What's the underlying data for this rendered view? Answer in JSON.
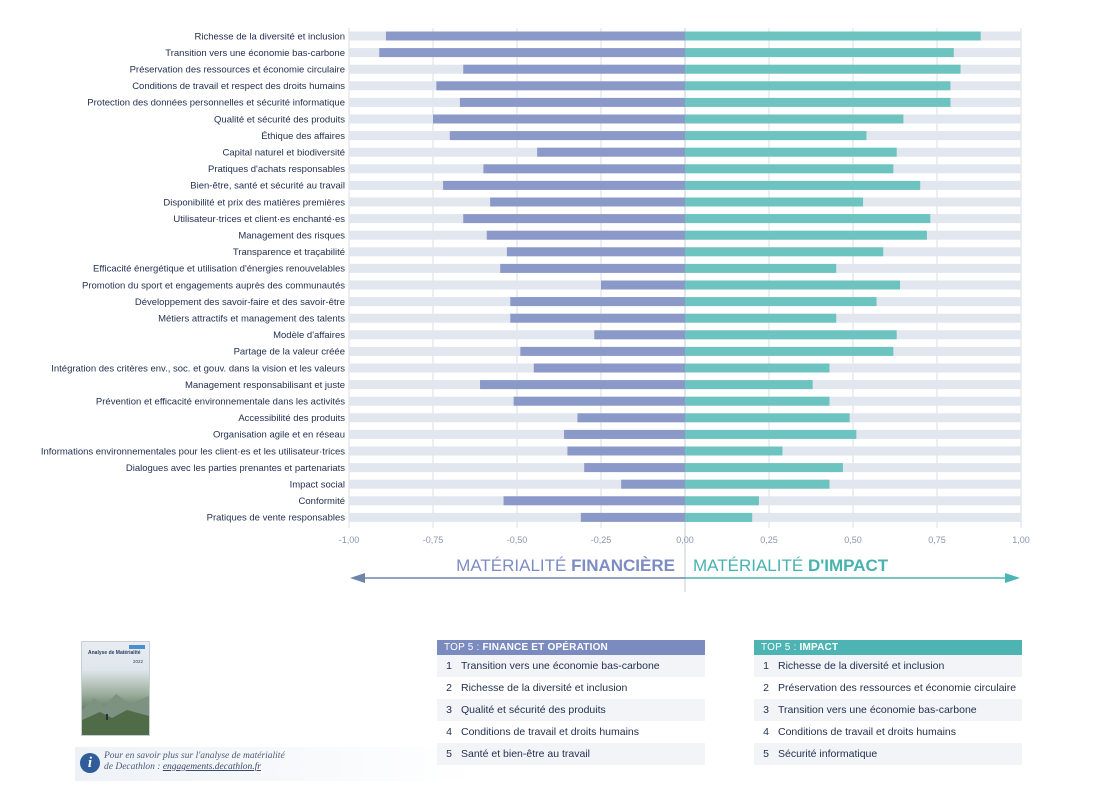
{
  "chart_data": {
    "type": "bar",
    "orientation": "horizontal",
    "categories": [
      "Richesse de la diversité et inclusion",
      "Transition vers une économie bas-carbone",
      "Préservation des ressources et économie circulaire",
      "Conditions de travail et respect des droits humains",
      "Protection des données personnelles et sécurité informatique",
      "Qualité et sécurité des produits",
      "Éthique des affaires",
      "Capital naturel et biodiversité",
      "Pratiques d'achats responsables",
      "Bien-être, santé et sécurité au travail",
      "Disponibilité et prix des matières premières",
      "Utilisateur·trices et client·es enchanté·es",
      "Management des risques",
      "Transparence et traçabilité",
      "Efficacité énergétique et utilisation d'énergies renouvelables",
      "Promotion du sport et engagements auprès des communautés",
      "Développement des savoir-faire et des savoir-être",
      "Métiers attractifs et management des talents",
      "Modèle d'affaires",
      "Partage de la valeur créée",
      "Intégration des critères env., soc. et gouv. dans la vision et les valeurs",
      "Management responsabilisant et juste",
      "Prévention et efficacité environnementale dans les activités",
      "Accessibilité des produits",
      "Organisation agile et en réseau",
      "Informations environnementales pour les client·es et les utilisateur·trices",
      "Dialogues avec les parties prenantes et partenariats",
      "Impact social",
      "Conformité",
      "Pratiques de vente responsables"
    ],
    "series": [
      {
        "name": "MATÉRIALITÉ FINANCIÈRE",
        "color": "#8b99c9",
        "values": [
          -0.89,
          -0.91,
          -0.66,
          -0.74,
          -0.67,
          -0.75,
          -0.7,
          -0.44,
          -0.6,
          -0.72,
          -0.58,
          -0.66,
          -0.59,
          -0.53,
          -0.55,
          -0.25,
          -0.52,
          -0.52,
          -0.27,
          -0.49,
          -0.45,
          -0.61,
          -0.51,
          -0.32,
          -0.36,
          -0.35,
          -0.3,
          -0.19,
          -0.54,
          -0.31
        ]
      },
      {
        "name": "MATÉRIALITÉ D'IMPACT",
        "color": "#6cc3c0",
        "values": [
          0.88,
          0.8,
          0.82,
          0.79,
          0.79,
          0.65,
          0.54,
          0.63,
          0.62,
          0.7,
          0.53,
          0.73,
          0.72,
          0.59,
          0.45,
          0.64,
          0.57,
          0.45,
          0.63,
          0.62,
          0.43,
          0.38,
          0.43,
          0.49,
          0.51,
          0.29,
          0.47,
          0.43,
          0.22,
          0.2
        ]
      }
    ],
    "xlim": [
      -1,
      1
    ],
    "ticks": [
      "-1,00",
      "-0,75",
      "-0,50",
      "-0,25",
      "0,00",
      "0,25",
      "0,50",
      "0,75",
      "1,00"
    ],
    "tick_values": [
      -1,
      -0.75,
      -0.5,
      -0.25,
      0,
      0.25,
      0.5,
      0.75,
      1
    ],
    "grid": true,
    "axis_label_left": {
      "light": "MATÉRIALITÉ ",
      "bold": "FINANCIÈRE"
    },
    "axis_label_right": {
      "light": "MATÉRIALITÉ ",
      "bold": "D'IMPACT"
    },
    "track_color": "#e2e6ee",
    "text_color": "#1f2d4d",
    "tick_color": "#8a95b0",
    "arrow_left_color": "#6d86a8",
    "arrow_right_color": "#4bb4b4"
  },
  "top5_finance": {
    "header_light": "TOP 5 : ",
    "header_bold": "FINANCE ET OPÉRATION",
    "color": "#7b8bc0",
    "items": [
      {
        "num": "1",
        "text": "Transition vers une économie bas-carbone"
      },
      {
        "num": "2",
        "text": "Richesse de la diversité et inclusion"
      },
      {
        "num": "3",
        "text": "Qualité et sécurité des produits"
      },
      {
        "num": "4",
        "text": "Conditions de travail et droits humains"
      },
      {
        "num": "5",
        "text": "Santé et bien-être au travail"
      }
    ]
  },
  "top5_impact": {
    "header_light": "TOP 5 : ",
    "header_bold": "IMPACT",
    "color": "#4db3b3",
    "items": [
      {
        "num": "1",
        "text": "Richesse de la diversité et inclusion"
      },
      {
        "num": "2",
        "text": "Préservation des ressources et économie circulaire"
      },
      {
        "num": "3",
        "text": "Transition vers une économie bas-carbone"
      },
      {
        "num": "4",
        "text": "Conditions de travail et droits humains"
      },
      {
        "num": "5",
        "text": "Sécurité informatique"
      }
    ]
  },
  "report_cover": {
    "title": "Analyse de Matérialité",
    "year": "2022"
  },
  "info": {
    "icon": "info-icon",
    "line1": "Pour en savoir plus sur l'analyse de matérialité",
    "line2_prefix": "de Decathlon : ",
    "link": "engagements.decathlon.fr"
  }
}
